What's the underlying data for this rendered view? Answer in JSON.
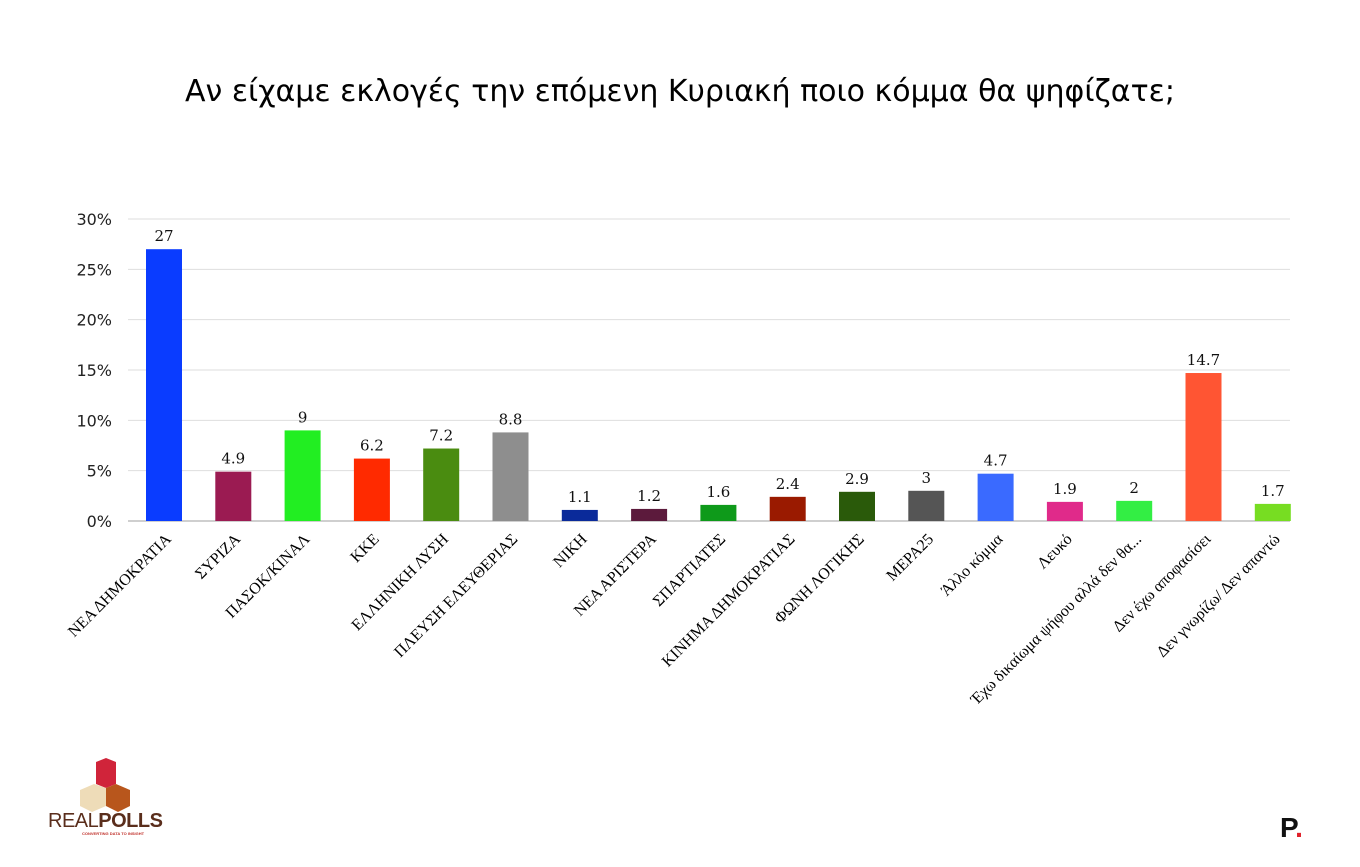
{
  "chart_data": {
    "type": "bar",
    "title": "Αν είχαμε εκλογές την επόμενη Κυριακή ποιο κόμμα θα ψηφίζατε;",
    "xlabel": "",
    "ylabel": "",
    "ylim": [
      0,
      30
    ],
    "yticks": [
      "0%",
      "5%",
      "10%",
      "15%",
      "20%",
      "25%",
      "30%"
    ],
    "grid": true,
    "categories": [
      "ΝΕΑ ΔΗΜΟΚΡΑΤΙΑ",
      "ΣΥΡΙΖΑ",
      "ΠΑΣΟΚ/ΚΙΝΑΛ",
      "ΚΚΕ",
      "ΕΛΛΗΝΙΚΗ ΛΥΣΗ",
      "ΠΛΕΥΣΗ ΕΛΕΥΘΕΡΙΑΣ",
      "ΝΙΚΗ",
      "ΝΕΑ ΑΡΙΣΤΕΡΑ",
      "ΣΠΑΡΤΙΑΤΕΣ",
      "ΚΙΝΗΜΑ ΔΗΜΟΚΡΑΤΙΑΣ",
      "ΦΩΝΗ ΛΟΓΙΚΗΣ",
      "ΜΕΡΑ25",
      "Άλλο κόμμα",
      "Λευκό",
      "Έχω δικαίωμα ψήφου αλλά δεν θα...",
      "Δεν έχω αποφασίσει",
      "Δεν γνωρίζω/ Δεν απαντώ"
    ],
    "values": [
      27,
      4.9,
      9,
      6.2,
      7.2,
      8.8,
      1.1,
      1.2,
      1.6,
      2.4,
      2.9,
      3,
      4.7,
      1.9,
      2,
      14.7,
      1.7
    ],
    "data_labels": [
      "27",
      "4.9",
      "9",
      "6.2",
      "7.2",
      "8.8",
      "1.1",
      "1.2",
      "1.6",
      "2.4",
      "2.9",
      "3",
      "4.7",
      "1.9",
      "2",
      "14.7",
      "1.7"
    ],
    "colors": [
      "#0a3cff",
      "#9b1b52",
      "#22ee22",
      "#ff2a00",
      "#4a8c10",
      "#8e8e8e",
      "#0a2a9a",
      "#5c1a3c",
      "#0e9a1a",
      "#9a1a00",
      "#2a5a0a",
      "#555555",
      "#3a6aff",
      "#e02a8a",
      "#33ee44",
      "#ff5533",
      "#77dd22"
    ]
  },
  "branding": {
    "logo_left": "REALPOLLS",
    "logo_left_tagline": "CONVERTING DATA TO INSIGHT",
    "logo_right": "P."
  }
}
